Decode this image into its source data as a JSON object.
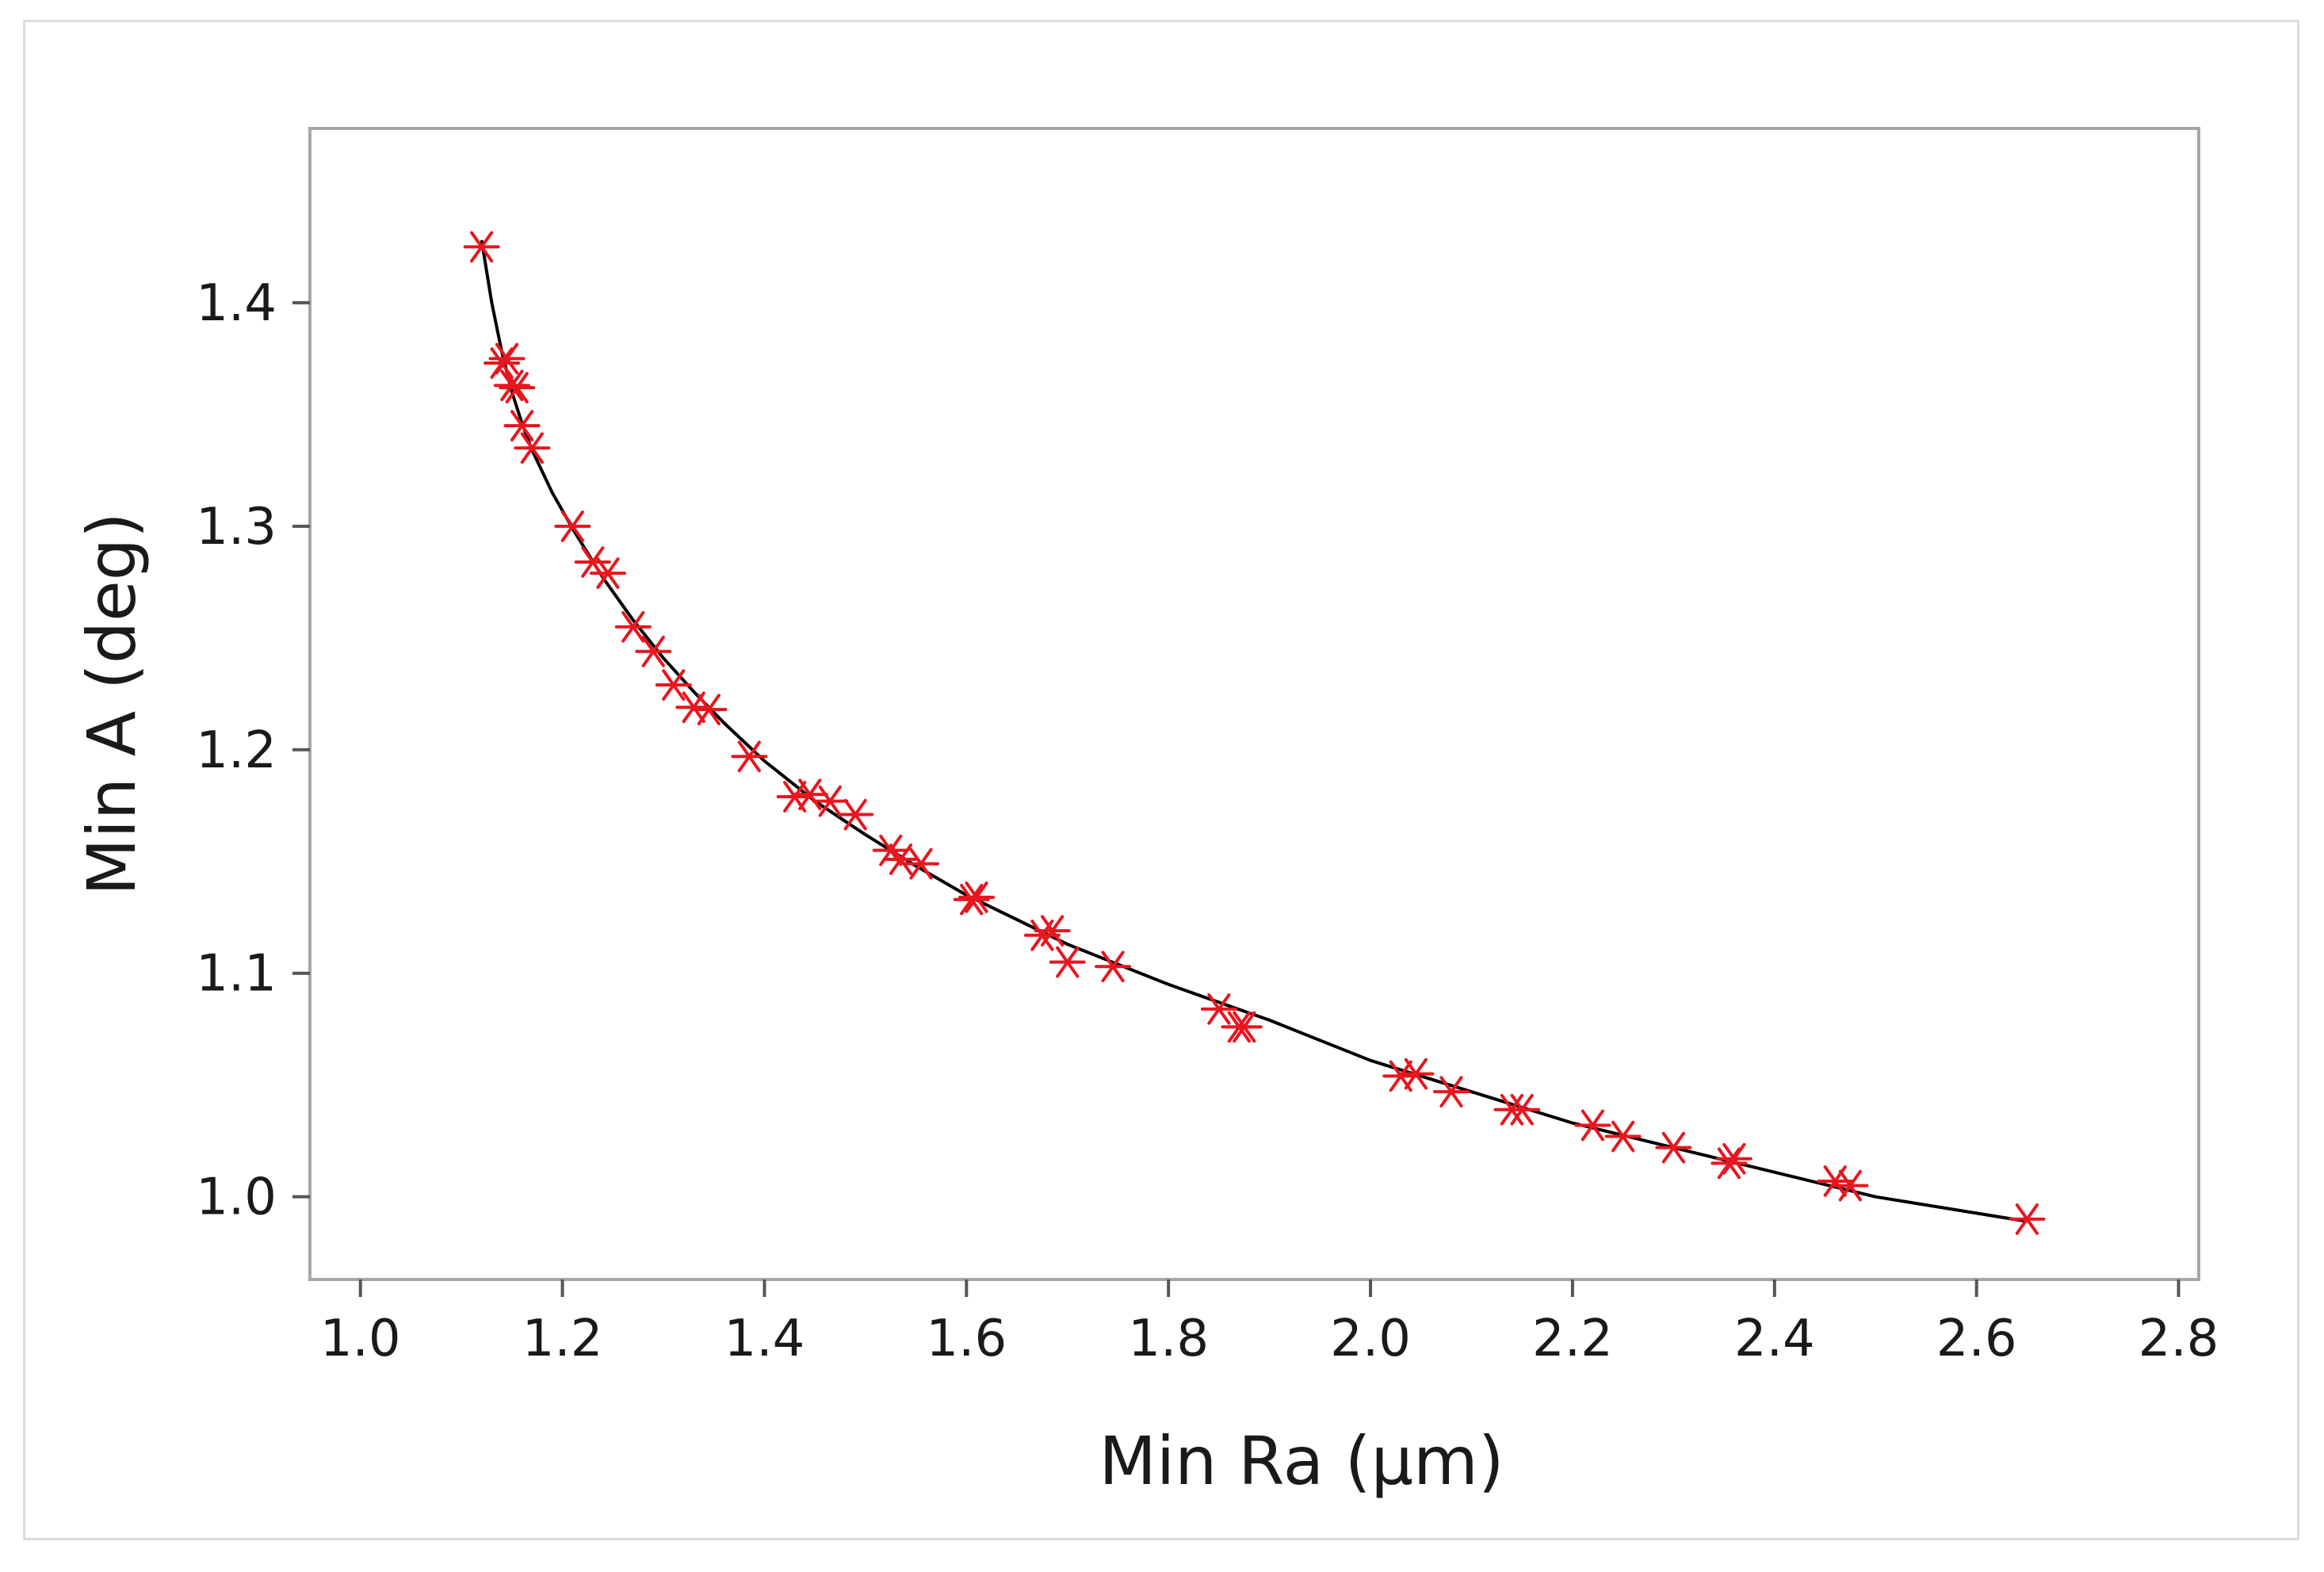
{
  "chart_data": {
    "type": "scatter",
    "title": "",
    "xlabel": "Min Ra (µm)",
    "ylabel": "Min A (deg)",
    "xlim": [
      0.95,
      2.82
    ],
    "ylim": [
      0.963,
      1.478
    ],
    "xticks": [
      "1.0",
      "1.2",
      "1.4",
      "1.6",
      "1.8",
      "2.0",
      "2.2",
      "2.4",
      "2.6",
      "2.8"
    ],
    "yticks": [
      "1.0",
      "1.1",
      "1.2",
      "1.3",
      "1.4"
    ],
    "grid": false,
    "legend": "none",
    "marker": "asterisk",
    "marker_color": "#e8161e",
    "line_color": "#000000",
    "series": [
      {
        "type": "scatter",
        "x": [
          1.12,
          1.14,
          1.145,
          1.15,
          1.155,
          1.16,
          1.17,
          1.21,
          1.23,
          1.245,
          1.27,
          1.29,
          1.31,
          1.33,
          1.345,
          1.385,
          1.43,
          1.445,
          1.465,
          1.49,
          1.525,
          1.535,
          1.555,
          1.605,
          1.61,
          1.675,
          1.685,
          1.7,
          1.745,
          1.85,
          1.87,
          1.875,
          2.03,
          2.045,
          2.08,
          2.14,
          2.15,
          2.22,
          2.25,
          2.3,
          2.355,
          2.36,
          2.46,
          2.475,
          2.65
        ],
        "y": [
          1.425,
          1.373,
          1.375,
          1.363,
          1.362,
          1.345,
          1.335,
          1.3,
          1.284,
          1.279,
          1.255,
          1.244,
          1.229,
          1.219,
          1.218,
          1.197,
          1.179,
          1.18,
          1.177,
          1.171,
          1.155,
          1.151,
          1.149,
          1.133,
          1.134,
          1.117,
          1.119,
          1.105,
          1.103,
          1.084,
          1.076,
          1.076,
          1.054,
          1.055,
          1.047,
          1.039,
          1.039,
          1.032,
          1.027,
          1.022,
          1.015,
          1.017,
          1.007,
          1.005,
          0.99
        ]
      },
      {
        "type": "line",
        "x": [
          1.12,
          1.13,
          1.14,
          1.15,
          1.16,
          1.17,
          1.19,
          1.21,
          1.24,
          1.27,
          1.3,
          1.33,
          1.36,
          1.4,
          1.45,
          1.5,
          1.55,
          1.6,
          1.65,
          1.7,
          1.75,
          1.8,
          1.85,
          1.9,
          2.0,
          2.1,
          2.2,
          2.3,
          2.4,
          2.5,
          2.65
        ],
        "y": [
          1.428,
          1.4,
          1.378,
          1.36,
          1.346,
          1.334,
          1.315,
          1.299,
          1.277,
          1.258,
          1.241,
          1.226,
          1.212,
          1.195,
          1.177,
          1.162,
          1.148,
          1.135,
          1.124,
          1.113,
          1.104,
          1.095,
          1.087,
          1.079,
          1.061,
          1.047,
          1.033,
          1.022,
          1.011,
          1.0,
          0.989
        ]
      }
    ]
  }
}
